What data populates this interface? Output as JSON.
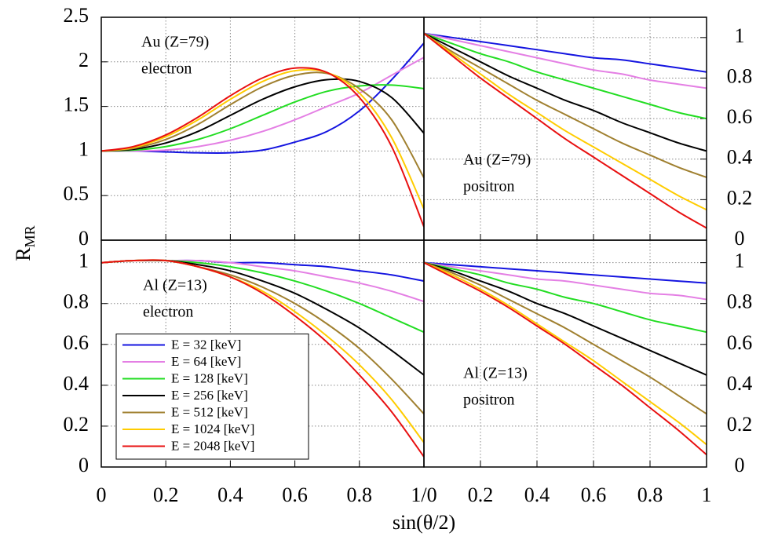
{
  "axes": {
    "xlabel": "sin(θ/2)",
    "ylabel": "R",
    "ylabel_sub": "MR"
  },
  "chart_data": [
    {
      "type": "line",
      "annotation": [
        "Au (Z=79)",
        "electron"
      ],
      "yaxis_side": "left",
      "xticklabels": false,
      "grid": true,
      "x": [
        0,
        0.1,
        0.2,
        0.3,
        0.4,
        0.5,
        0.6,
        0.7,
        0.8,
        0.9,
        1
      ],
      "xlim": [
        0,
        1
      ],
      "ylim": [
        0,
        2.5
      ],
      "xticks": [
        0,
        0.2,
        0.4,
        0.6,
        0.8,
        1
      ],
      "yticks": [
        0,
        0.5,
        1,
        1.5,
        2,
        2.5
      ],
      "series": [
        {
          "color": "#1414e0",
          "values": [
            1,
            1.0,
            0.99,
            0.98,
            0.98,
            1.01,
            1.1,
            1.22,
            1.45,
            1.8,
            2.21
          ]
        },
        {
          "color": "#e47fe4",
          "values": [
            1,
            1.0,
            1.01,
            1.05,
            1.12,
            1.22,
            1.35,
            1.5,
            1.65,
            1.85,
            2.05
          ]
        },
        {
          "color": "#22dd22",
          "values": [
            1,
            1.01,
            1.05,
            1.13,
            1.25,
            1.4,
            1.55,
            1.67,
            1.73,
            1.74,
            1.7
          ]
        },
        {
          "color": "#000000",
          "values": [
            1,
            1.02,
            1.09,
            1.22,
            1.4,
            1.58,
            1.72,
            1.8,
            1.78,
            1.6,
            1.2
          ]
        },
        {
          "color": "#a08030",
          "values": [
            1,
            1.03,
            1.13,
            1.3,
            1.52,
            1.72,
            1.85,
            1.87,
            1.7,
            1.35,
            0.7
          ]
        },
        {
          "color": "#ffcc00",
          "values": [
            1,
            1.04,
            1.16,
            1.35,
            1.58,
            1.78,
            1.9,
            1.88,
            1.65,
            1.15,
            0.35
          ]
        },
        {
          "color": "#e81010",
          "values": [
            1,
            1.05,
            1.18,
            1.38,
            1.62,
            1.82,
            1.93,
            1.88,
            1.6,
            1.05,
            0.15
          ]
        }
      ]
    },
    {
      "type": "line",
      "annotation": [
        "Au (Z=79)",
        "positron"
      ],
      "yaxis_side": "right",
      "xticklabels": false,
      "grid": true,
      "x": [
        0,
        0.1,
        0.2,
        0.3,
        0.4,
        0.5,
        0.6,
        0.7,
        0.8,
        0.9,
        1
      ],
      "xlim": [
        0,
        1
      ],
      "ylim": [
        0,
        1.1
      ],
      "xticks": [
        0,
        0.2,
        0.4,
        0.6,
        0.8,
        1
      ],
      "yticks": [
        0,
        0.2,
        0.4,
        0.6,
        0.8,
        1
      ],
      "series": [
        {
          "color": "#1414e0",
          "values": [
            1.02,
            1.0,
            0.98,
            0.96,
            0.94,
            0.92,
            0.9,
            0.89,
            0.87,
            0.85,
            0.83
          ]
        },
        {
          "color": "#e47fe4",
          "values": [
            1.02,
            0.99,
            0.96,
            0.93,
            0.9,
            0.87,
            0.84,
            0.82,
            0.79,
            0.77,
            0.75
          ]
        },
        {
          "color": "#22dd22",
          "values": [
            1.02,
            0.97,
            0.92,
            0.88,
            0.83,
            0.79,
            0.75,
            0.71,
            0.67,
            0.63,
            0.6
          ]
        },
        {
          "color": "#000000",
          "values": [
            1.02,
            0.95,
            0.88,
            0.81,
            0.75,
            0.69,
            0.64,
            0.58,
            0.53,
            0.48,
            0.44
          ]
        },
        {
          "color": "#a08030",
          "values": [
            1.02,
            0.93,
            0.85,
            0.77,
            0.69,
            0.62,
            0.55,
            0.48,
            0.42,
            0.36,
            0.31
          ]
        },
        {
          "color": "#ffcc00",
          "values": [
            1.02,
            0.92,
            0.82,
            0.72,
            0.63,
            0.54,
            0.46,
            0.38,
            0.3,
            0.22,
            0.15
          ]
        },
        {
          "color": "#e81010",
          "values": [
            1.02,
            0.91,
            0.8,
            0.7,
            0.6,
            0.5,
            0.41,
            0.32,
            0.23,
            0.14,
            0.06
          ]
        }
      ]
    },
    {
      "type": "line",
      "annotation": [
        "Al (Z=13)",
        "electron"
      ],
      "yaxis_side": "left",
      "grid": true,
      "legend": "lower left",
      "x": [
        0,
        0.1,
        0.2,
        0.3,
        0.4,
        0.5,
        0.6,
        0.7,
        0.8,
        0.9,
        1
      ],
      "xlim": [
        0,
        1
      ],
      "ylim": [
        0,
        1.11
      ],
      "xticks": [
        0,
        0.2,
        0.4,
        0.6,
        0.8,
        {
          "value": 1,
          "label": "1/0"
        }
      ],
      "yticks": [
        0,
        0.2,
        0.4,
        0.6,
        0.8,
        1
      ],
      "series": [
        {
          "name": "E = 32 [keV]",
          "color": "#1414e0",
          "values": [
            1,
            1.01,
            1.01,
            1.01,
            1.0,
            1.0,
            0.99,
            0.98,
            0.96,
            0.94,
            0.91
          ]
        },
        {
          "name": "E = 64 [keV]",
          "color": "#e47fe4",
          "values": [
            1,
            1.01,
            1.01,
            1.01,
            1.0,
            0.98,
            0.96,
            0.93,
            0.9,
            0.86,
            0.81
          ]
        },
        {
          "name": "E = 128 [keV]",
          "color": "#22dd22",
          "values": [
            1,
            1.01,
            1.01,
            1.0,
            0.98,
            0.95,
            0.91,
            0.86,
            0.8,
            0.73,
            0.66
          ]
        },
        {
          "name": "E = 256 [keV]",
          "color": "#000000",
          "values": [
            1,
            1.01,
            1.01,
            0.99,
            0.96,
            0.91,
            0.85,
            0.77,
            0.68,
            0.57,
            0.45
          ]
        },
        {
          "name": "E = 512 [keV]",
          "color": "#a08030",
          "values": [
            1,
            1.01,
            1.01,
            0.98,
            0.94,
            0.88,
            0.8,
            0.7,
            0.58,
            0.43,
            0.26
          ]
        },
        {
          "name": "E = 1024 [keV]",
          "color": "#ffcc00",
          "values": [
            1,
            1.01,
            1.01,
            0.98,
            0.93,
            0.86,
            0.76,
            0.64,
            0.5,
            0.33,
            0.12
          ]
        },
        {
          "name": "E = 2048 [keV]",
          "color": "#e81010",
          "values": [
            1,
            1.01,
            1.01,
            0.98,
            0.93,
            0.85,
            0.74,
            0.61,
            0.45,
            0.27,
            0.05
          ]
        }
      ]
    },
    {
      "type": "line",
      "annotation": [
        "Al (Z=13)",
        "positron"
      ],
      "yaxis_side": "right",
      "grid": true,
      "x": [
        0,
        0.1,
        0.2,
        0.3,
        0.4,
        0.5,
        0.6,
        0.7,
        0.8,
        0.9,
        1
      ],
      "xlim": [
        0,
        1
      ],
      "ylim": [
        0,
        1.11
      ],
      "xticks": [
        0.2,
        0.4,
        0.6,
        0.8,
        1
      ],
      "yticks": [
        0,
        0.2,
        0.4,
        0.6,
        0.8,
        1
      ],
      "series": [
        {
          "color": "#1414e0",
          "values": [
            1,
            0.99,
            0.98,
            0.97,
            0.96,
            0.95,
            0.94,
            0.93,
            0.92,
            0.91,
            0.9
          ]
        },
        {
          "color": "#e47fe4",
          "values": [
            1,
            0.98,
            0.96,
            0.94,
            0.92,
            0.91,
            0.89,
            0.87,
            0.85,
            0.84,
            0.82
          ]
        },
        {
          "color": "#22dd22",
          "values": [
            1,
            0.97,
            0.94,
            0.9,
            0.87,
            0.83,
            0.8,
            0.76,
            0.72,
            0.69,
            0.66
          ]
        },
        {
          "color": "#000000",
          "values": [
            1,
            0.96,
            0.91,
            0.86,
            0.8,
            0.75,
            0.69,
            0.63,
            0.57,
            0.51,
            0.45
          ]
        },
        {
          "color": "#a08030",
          "values": [
            1,
            0.95,
            0.89,
            0.82,
            0.75,
            0.68,
            0.6,
            0.52,
            0.44,
            0.35,
            0.26
          ]
        },
        {
          "color": "#ffcc00",
          "values": [
            1,
            0.94,
            0.87,
            0.79,
            0.7,
            0.61,
            0.52,
            0.42,
            0.32,
            0.22,
            0.11
          ]
        },
        {
          "color": "#e81010",
          "values": [
            1,
            0.93,
            0.86,
            0.78,
            0.69,
            0.6,
            0.5,
            0.4,
            0.29,
            0.18,
            0.06
          ]
        }
      ]
    }
  ]
}
